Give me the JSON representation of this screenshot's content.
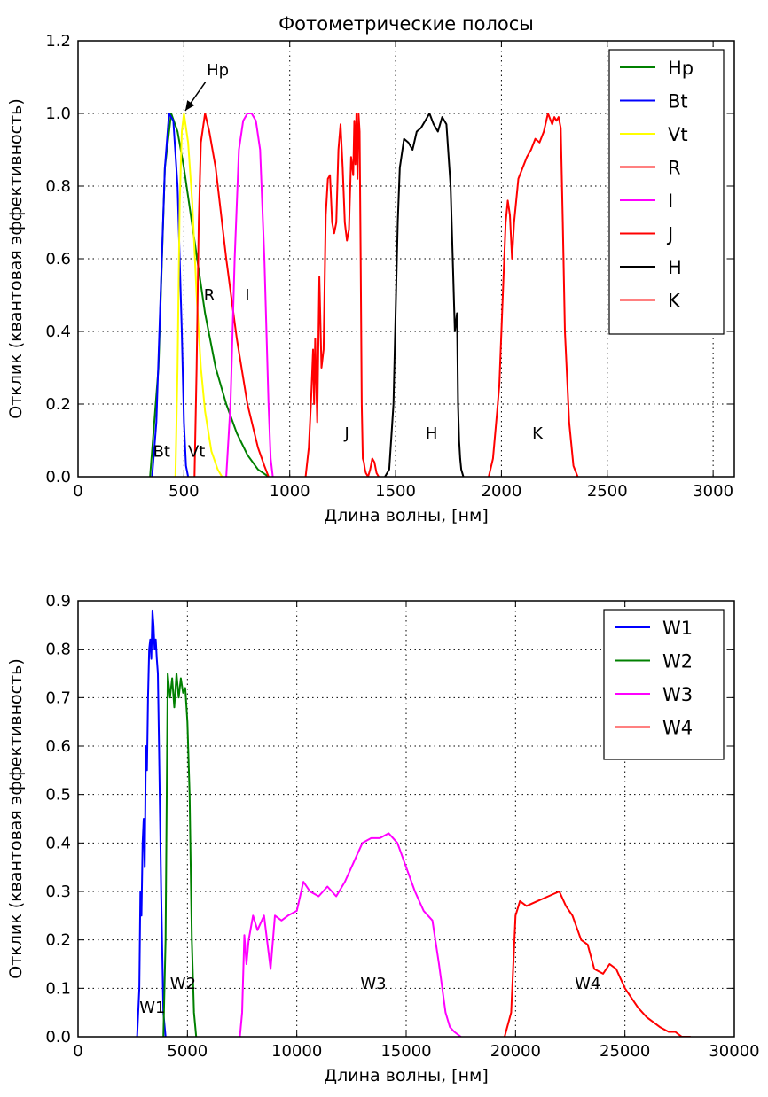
{
  "chart_data": [
    {
      "type": "line",
      "title": "Фотометрические полосы",
      "xlabel": "Длина волны, [нм]",
      "ylabel": "Отклик (квантовая эффективность)",
      "xlim": [
        0,
        3100
      ],
      "ylim": [
        0,
        1.2
      ],
      "xticks": [
        0,
        500,
        1000,
        1500,
        2000,
        2500,
        3000
      ],
      "xtick_labels": [
        "0",
        "500",
        "1000",
        "1500",
        "2000",
        "2500",
        "3000"
      ],
      "yticks": [
        0,
        0.2,
        0.4,
        0.6,
        0.8,
        1.0,
        1.2
      ],
      "ytick_labels": [
        "0.0",
        "0.2",
        "0.4",
        "0.6",
        "0.8",
        "1.0",
        "1.2"
      ],
      "grid": true,
      "legend_position": "upper-right",
      "series": [
        {
          "name": "Hp",
          "color": "#008000",
          "x": [
            340,
            380,
            410,
            440,
            470,
            500,
            550,
            600,
            650,
            700,
            750,
            800,
            850,
            900
          ],
          "y": [
            0,
            0.3,
            0.85,
            1.0,
            0.95,
            0.85,
            0.65,
            0.45,
            0.3,
            0.2,
            0.12,
            0.06,
            0.02,
            0
          ]
        },
        {
          "name": "Bt",
          "color": "#0000ff",
          "x": [
            350,
            370,
            390,
            410,
            430,
            450,
            470,
            490,
            500,
            510,
            520
          ],
          "y": [
            0,
            0.15,
            0.5,
            0.85,
            1.0,
            0.98,
            0.8,
            0.4,
            0.15,
            0.03,
            0
          ]
        },
        {
          "name": "Vt",
          "color": "#ffff00",
          "x": [
            460,
            470,
            480,
            490,
            500,
            520,
            540,
            560,
            580,
            600,
            630,
            660,
            680
          ],
          "y": [
            0,
            0.3,
            0.75,
            0.95,
            1.0,
            0.92,
            0.75,
            0.5,
            0.3,
            0.18,
            0.07,
            0.02,
            0
          ]
        },
        {
          "name": "R",
          "color": "#ff0000",
          "x": [
            550,
            560,
            570,
            580,
            600,
            620,
            650,
            700,
            750,
            800,
            850,
            880,
            900
          ],
          "y": [
            0,
            0.3,
            0.7,
            0.92,
            1.0,
            0.95,
            0.85,
            0.6,
            0.38,
            0.2,
            0.08,
            0.03,
            0
          ]
        },
        {
          "name": "I",
          "color": "#ff00ff",
          "x": [
            700,
            720,
            740,
            760,
            780,
            800,
            820,
            840,
            860,
            880,
            900,
            910,
            920
          ],
          "y": [
            0,
            0.2,
            0.6,
            0.9,
            0.98,
            1.0,
            1.0,
            0.98,
            0.9,
            0.6,
            0.2,
            0.05,
            0
          ]
        },
        {
          "name": "J",
          "color": "#ff0000",
          "x": [
            1075,
            1090,
            1100,
            1110,
            1115,
            1120,
            1130,
            1140,
            1150,
            1160,
            1170,
            1180,
            1190,
            1200,
            1210,
            1220,
            1230,
            1240,
            1250,
            1260,
            1270,
            1280,
            1290,
            1300,
            1305,
            1310,
            1315,
            1320,
            1325,
            1330,
            1335,
            1340,
            1345,
            1350,
            1355,
            1360,
            1370,
            1380,
            1390,
            1400,
            1410,
            1420
          ],
          "y": [
            0,
            0.08,
            0.2,
            0.35,
            0.2,
            0.38,
            0.15,
            0.55,
            0.3,
            0.35,
            0.72,
            0.82,
            0.83,
            0.7,
            0.67,
            0.7,
            0.9,
            0.97,
            0.85,
            0.7,
            0.65,
            0.68,
            0.88,
            0.83,
            0.98,
            0.86,
            1.0,
            0.82,
            1.0,
            0.95,
            0.6,
            0.2,
            0.05,
            0.04,
            0.02,
            0.01,
            0,
            0.02,
            0.05,
            0.04,
            0.01,
            0
          ]
        },
        {
          "name": "H",
          "color": "#000000",
          "x": [
            1450,
            1470,
            1490,
            1500,
            1510,
            1520,
            1540,
            1560,
            1580,
            1600,
            1620,
            1640,
            1660,
            1680,
            1700,
            1720,
            1740,
            1760,
            1780,
            1790,
            1795,
            1800,
            1805,
            1810,
            1820
          ],
          "y": [
            0,
            0.02,
            0.2,
            0.45,
            0.7,
            0.85,
            0.93,
            0.92,
            0.9,
            0.95,
            0.96,
            0.98,
            1.0,
            0.97,
            0.95,
            0.99,
            0.97,
            0.8,
            0.4,
            0.45,
            0.2,
            0.1,
            0.05,
            0.02,
            0
          ]
        },
        {
          "name": "K",
          "color": "#ff0000",
          "x": [
            1940,
            1960,
            1980,
            1990,
            2000,
            2010,
            2020,
            2030,
            2040,
            2050,
            2060,
            2080,
            2100,
            2120,
            2140,
            2160,
            2180,
            2200,
            2220,
            2240,
            2250,
            2260,
            2270,
            2280,
            2290,
            2300,
            2320,
            2340,
            2360
          ],
          "y": [
            0,
            0.05,
            0.18,
            0.25,
            0.4,
            0.55,
            0.7,
            0.76,
            0.72,
            0.6,
            0.7,
            0.82,
            0.85,
            0.88,
            0.9,
            0.93,
            0.92,
            0.95,
            1.0,
            0.97,
            0.99,
            0.98,
            0.99,
            0.96,
            0.7,
            0.4,
            0.15,
            0.03,
            0
          ]
        }
      ],
      "annotations": [
        {
          "text": "Hp",
          "x": 660,
          "y": 1.12,
          "arrow_to_x": 490,
          "arrow_to_y": 1.0
        },
        {
          "text": "Bt",
          "x": 395,
          "y": 0.07
        },
        {
          "text": "Vt",
          "x": 560,
          "y": 0.07
        },
        {
          "text": "R",
          "x": 620,
          "y": 0.5
        },
        {
          "text": "I",
          "x": 800,
          "y": 0.5
        },
        {
          "text": "J",
          "x": 1270,
          "y": 0.12
        },
        {
          "text": "H",
          "x": 1670,
          "y": 0.12
        },
        {
          "text": "K",
          "x": 2170,
          "y": 0.12
        }
      ]
    },
    {
      "type": "line",
      "title": "",
      "xlabel": "Длина волны, [нм]",
      "ylabel": "Отклик (квантовая эффективность)",
      "xlim": [
        0,
        30000
      ],
      "ylim": [
        0,
        0.9
      ],
      "xticks": [
        0,
        5000,
        10000,
        15000,
        20000,
        25000,
        30000
      ],
      "xtick_labels": [
        "0",
        "5000",
        "10000",
        "15000",
        "20000",
        "25000",
        "30000"
      ],
      "yticks": [
        0,
        0.1,
        0.2,
        0.3,
        0.4,
        0.5,
        0.6,
        0.7,
        0.8,
        0.9
      ],
      "ytick_labels": [
        "0.0",
        "0.1",
        "0.2",
        "0.3",
        "0.4",
        "0.5",
        "0.6",
        "0.7",
        "0.8",
        "0.9"
      ],
      "grid": true,
      "legend_position": "upper-right",
      "series": [
        {
          "name": "W1",
          "color": "#0000ff",
          "x": [
            2700,
            2800,
            2850,
            2900,
            2950,
            3000,
            3050,
            3100,
            3150,
            3200,
            3250,
            3300,
            3350,
            3400,
            3450,
            3500,
            3550,
            3600,
            3650,
            3700,
            3800,
            3900,
            4000
          ],
          "y": [
            0,
            0.1,
            0.3,
            0.25,
            0.4,
            0.45,
            0.35,
            0.6,
            0.55,
            0.7,
            0.8,
            0.82,
            0.78,
            0.88,
            0.85,
            0.8,
            0.82,
            0.78,
            0.75,
            0.6,
            0.3,
            0.05,
            0
          ]
        },
        {
          "name": "W2",
          "color": "#008000",
          "x": [
            3900,
            4000,
            4100,
            4200,
            4300,
            4400,
            4500,
            4600,
            4700,
            4800,
            4900,
            5000,
            5100,
            5200,
            5300,
            5400
          ],
          "y": [
            0,
            0.2,
            0.75,
            0.7,
            0.74,
            0.68,
            0.75,
            0.7,
            0.74,
            0.71,
            0.72,
            0.65,
            0.5,
            0.2,
            0.05,
            0
          ]
        },
        {
          "name": "W3",
          "color": "#ff00ff",
          "x": [
            7400,
            7500,
            7600,
            7700,
            7800,
            8000,
            8200,
            8500,
            8800,
            9000,
            9300,
            9600,
            10000,
            10300,
            10600,
            11000,
            11400,
            11800,
            12200,
            12600,
            13000,
            13400,
            13800,
            14200,
            14600,
            15000,
            15400,
            15800,
            16200,
            16500,
            16800,
            17000,
            17200,
            17500
          ],
          "y": [
            0,
            0.05,
            0.21,
            0.15,
            0.2,
            0.25,
            0.22,
            0.25,
            0.14,
            0.25,
            0.24,
            0.25,
            0.26,
            0.32,
            0.3,
            0.29,
            0.31,
            0.29,
            0.32,
            0.36,
            0.4,
            0.41,
            0.41,
            0.42,
            0.4,
            0.35,
            0.3,
            0.26,
            0.24,
            0.15,
            0.05,
            0.02,
            0.01,
            0
          ]
        },
        {
          "name": "W4",
          "color": "#ff0000",
          "x": [
            19500,
            19800,
            20000,
            20200,
            20500,
            21000,
            21500,
            22000,
            22300,
            22600,
            23000,
            23300,
            23600,
            24000,
            24300,
            24600,
            25000,
            25300,
            25600,
            26000,
            26300,
            26600,
            27000,
            27300,
            27600,
            28000
          ],
          "y": [
            0,
            0.05,
            0.25,
            0.28,
            0.27,
            0.28,
            0.29,
            0.3,
            0.27,
            0.25,
            0.2,
            0.19,
            0.14,
            0.13,
            0.15,
            0.14,
            0.1,
            0.08,
            0.06,
            0.04,
            0.03,
            0.02,
            0.01,
            0.01,
            0,
            0
          ]
        }
      ],
      "annotations": [
        {
          "text": "W1",
          "x": 3400,
          "y": 0.06
        },
        {
          "text": "W2",
          "x": 4800,
          "y": 0.11
        },
        {
          "text": "W3",
          "x": 13500,
          "y": 0.11
        },
        {
          "text": "W4",
          "x": 23300,
          "y": 0.11
        }
      ]
    }
  ]
}
